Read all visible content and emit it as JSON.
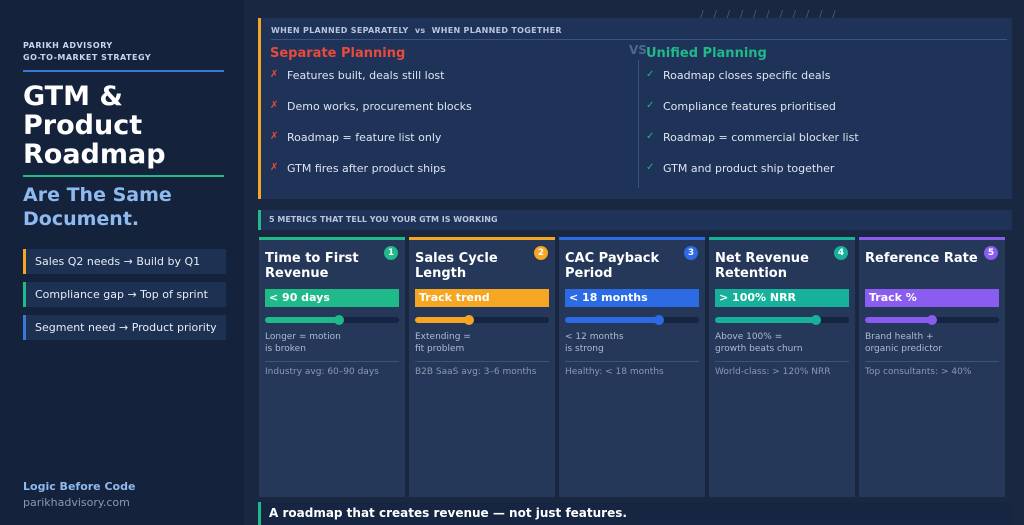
{
  "sidebar": {
    "brand_line1": "PARIKH ADVISORY",
    "brand_line2": "GO-TO-MARKET STRATEGY",
    "title_lines": [
      "GTM &",
      "Product",
      "Roadmap"
    ],
    "subtitle_lines": [
      "Are The Same",
      "Document."
    ],
    "tags": [
      {
        "label": "Sales Q2 needs → Build by Q1",
        "color": "#f5a623"
      },
      {
        "label": "Compliance gap → Top of sprint",
        "color": "#1fb98a"
      },
      {
        "label": "Segment need → Product priority",
        "color": "#3a78d8"
      }
    ],
    "footer_tagline": "Logic Before Code",
    "footer_site": "parikhadvisory.com"
  },
  "decoration": {
    "slashes": "/ / / / / / / / / / /"
  },
  "comparison": {
    "header_left": "WHEN PLANNED SEPARATELY",
    "header_vs": "vs",
    "header_right": "WHEN PLANNED TOGETHER",
    "vs_label": "VS",
    "separate": {
      "title": "Separate Planning",
      "mark": "✗",
      "items": [
        "Features built, deals still lost",
        "Demo works, procurement blocks",
        "Roadmap = feature list only",
        "GTM fires after product ships"
      ]
    },
    "unified": {
      "title": "Unified Planning",
      "mark": "✓",
      "items": [
        "Roadmap closes specific deals",
        "Compliance features prioritised",
        "Roadmap = commercial blocker list",
        "GTM and product ship together"
      ]
    }
  },
  "metrics": {
    "header": "5 METRICS THAT TELL YOU YOUR GTM IS WORKING",
    "cards": [
      {
        "number": "1",
        "title": "Time to First Revenue",
        "target": "< 90 days",
        "color": "#1fb98a",
        "level": 0.55,
        "desc_lines": [
          "Longer = motion",
          "is broken"
        ],
        "benchmark": "Industry avg: 60–90 days"
      },
      {
        "number": "2",
        "title": "Sales Cycle Length",
        "target": "Track trend",
        "color": "#f5a623",
        "level": 0.4,
        "desc_lines": [
          "Extending =",
          "fit problem"
        ],
        "benchmark": "B2B SaaS avg: 3–6 months"
      },
      {
        "number": "3",
        "title": "CAC Payback Period",
        "target": "< 18 months",
        "color": "#2d6be4",
        "level": 0.7,
        "desc_lines": [
          "< 12 months",
          "is strong"
        ],
        "benchmark": "Healthy: < 18 months"
      },
      {
        "number": "4",
        "title": "Net Revenue Retention",
        "target": "> 100% NRR",
        "color": "#17b19b",
        "level": 0.75,
        "desc_lines": [
          "Above 100% =",
          "growth beats churn"
        ],
        "benchmark": "World-class: > 120% NRR"
      },
      {
        "number": "5",
        "title": "Reference Rate",
        "target": "Track %",
        "color": "#8a5cf0",
        "level": 0.5,
        "desc_lines": [
          "Brand health +",
          "organic predictor"
        ],
        "benchmark": "Top consultants: > 40%"
      }
    ]
  },
  "footer_banner": "A roadmap that creates revenue — not just features."
}
